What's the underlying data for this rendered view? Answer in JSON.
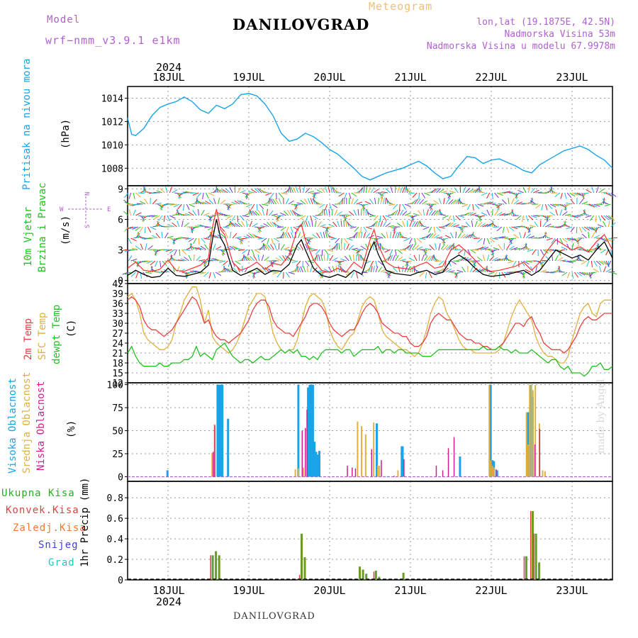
{
  "header": {
    "model_label": "Model",
    "model_name": "wrf−nmm_v3.9.1  e1km",
    "title": "DANILOVGRAD",
    "meteogram": "Meteogram",
    "lonlat": "lon,lat (19.1875E, 42.5N)",
    "altitude": "Nadmorska Visina 53m",
    "model_altitude": "Nadmorska Visina u modelu 67.9978m"
  },
  "footer": "DANILOVGRAD",
  "watermark": "made by Angel",
  "top_axis": {
    "year": "2024",
    "days": [
      "18JUL",
      "19JUL",
      "20JUL",
      "21JUL",
      "22JUL",
      "23JUL"
    ]
  },
  "bottom_axis": {
    "year": "2024",
    "days": [
      "18JUL",
      "19JUL",
      "20JUL",
      "21JUL",
      "22JUL",
      "23JUL"
    ]
  },
  "compass": {
    "n": "N",
    "s": "S",
    "w": "W",
    "e": "E"
  },
  "chart_data": [
    {
      "type": "line",
      "name": "pressure",
      "ylabel_colored": "Pritisak na nivou mora",
      "unit": "(hPa)",
      "color": "#1aa3e8",
      "ylim": [
        1006.5,
        1015
      ],
      "yticks": [
        "1008",
        "1010",
        "1012",
        "1014"
      ],
      "ytick_values": [
        1008,
        1010,
        1012,
        1014
      ],
      "x_days": [
        17.5,
        17.55,
        17.6,
        17.7,
        17.8,
        17.9,
        18.0,
        18.1,
        18.2,
        18.3,
        18.4,
        18.5,
        18.6,
        18.7,
        18.8,
        18.9,
        19.0,
        19.1,
        19.2,
        19.3,
        19.4,
        19.5,
        19.6,
        19.7,
        19.8,
        19.9,
        20.0,
        20.1,
        20.2,
        20.3,
        20.4,
        20.5,
        20.6,
        20.7,
        20.8,
        20.9,
        21.0,
        21.1,
        21.2,
        21.3,
        21.4,
        21.5,
        21.6,
        21.7,
        21.8,
        21.9,
        22.0,
        22.1,
        22.2,
        22.3,
        22.4,
        22.5,
        22.6,
        22.7,
        22.8,
        22.9,
        23.0,
        23.1,
        23.2,
        23.3,
        23.4,
        23.5
      ],
      "values": [
        1012.3,
        1010.9,
        1010.8,
        1011.4,
        1012.5,
        1013.2,
        1013.5,
        1013.7,
        1014.1,
        1013.7,
        1013.0,
        1012.7,
        1013.4,
        1013.1,
        1013.5,
        1014.3,
        1014.4,
        1014.2,
        1013.5,
        1012.5,
        1011.0,
        1010.3,
        1010.5,
        1011.0,
        1010.7,
        1010.2,
        1009.6,
        1009.2,
        1008.6,
        1008.0,
        1007.3,
        1007.0,
        1007.3,
        1007.6,
        1007.8,
        1008.0,
        1008.3,
        1008.6,
        1008.2,
        1007.6,
        1007.1,
        1007.3,
        1008.2,
        1009.0,
        1008.9,
        1008.4,
        1008.7,
        1008.8,
        1008.5,
        1008.2,
        1007.8,
        1007.6,
        1008.3,
        1008.7,
        1009.1,
        1009.5,
        1009.7,
        1009.9,
        1009.6,
        1009.1,
        1008.7,
        1008.0
      ]
    },
    {
      "type": "line",
      "name": "wind",
      "ylabel_colored_1": "10m Vjetar",
      "ylabel_colored_2": "Brzina i Pravac",
      "unit": "(m/s)",
      "ylim": [
        -0.3,
        9.3
      ],
      "yticks": [
        "0",
        "3",
        "6",
        "9"
      ],
      "ytick_values": [
        0,
        3,
        6,
        9
      ],
      "speed_color": "#000000",
      "gust_color": "#ff3030",
      "x_days": [
        17.5,
        17.6,
        17.7,
        17.8,
        17.9,
        18.0,
        18.1,
        18.2,
        18.3,
        18.4,
        18.5,
        18.55,
        18.6,
        18.65,
        18.7,
        18.8,
        18.9,
        19.0,
        19.1,
        19.2,
        19.3,
        19.4,
        19.5,
        19.6,
        19.65,
        19.7,
        19.8,
        19.9,
        20.0,
        20.1,
        20.2,
        20.3,
        20.4,
        20.5,
        20.55,
        20.6,
        20.7,
        20.8,
        20.9,
        21.0,
        21.1,
        21.2,
        21.3,
        21.4,
        21.5,
        21.6,
        21.7,
        21.8,
        21.9,
        22.0,
        22.1,
        22.2,
        22.3,
        22.4,
        22.5,
        22.6,
        22.7,
        22.8,
        22.9,
        23.0,
        23.1,
        23.2,
        23.3,
        23.4,
        23.5
      ],
      "speed": [
        0.5,
        1.0,
        0.6,
        0.3,
        0.4,
        1.2,
        0.5,
        0.4,
        0.6,
        0.8,
        1.5,
        4.0,
        6.0,
        4.2,
        3.5,
        1.0,
        0.5,
        0.8,
        1.2,
        0.6,
        1.0,
        0.9,
        1.6,
        3.5,
        4.0,
        3.0,
        1.2,
        0.5,
        0.3,
        0.6,
        0.3,
        1.0,
        0.6,
        3.0,
        3.8,
        2.6,
        1.0,
        0.7,
        0.6,
        0.5,
        0.8,
        1.0,
        0.6,
        0.8,
        2.0,
        2.5,
        2.0,
        1.2,
        0.6,
        0.4,
        0.5,
        0.6,
        0.8,
        1.0,
        0.5,
        1.0,
        2.0,
        3.0,
        2.6,
        2.2,
        2.5,
        2.0,
        3.0,
        3.8,
        2.2
      ],
      "gust": [
        1.2,
        1.8,
        1.0,
        0.9,
        1.1,
        2.0,
        1.0,
        0.9,
        1.2,
        1.5,
        2.2,
        5.2,
        7.0,
        5.0,
        4.5,
        1.8,
        1.0,
        1.3,
        1.8,
        1.1,
        1.7,
        1.5,
        2.5,
        5.0,
        5.5,
        4.0,
        2.0,
        1.0,
        0.8,
        1.2,
        0.8,
        1.8,
        1.2,
        4.0,
        5.0,
        3.5,
        1.8,
        1.3,
        1.2,
        1.1,
        1.5,
        1.8,
        1.2,
        1.4,
        3.0,
        3.5,
        2.8,
        2.0,
        1.2,
        0.9,
        1.0,
        1.2,
        1.4,
        1.8,
        1.0,
        1.8,
        3.0,
        4.0,
        3.5,
        3.0,
        3.3,
        2.8,
        3.8,
        4.5,
        3.0
      ]
    },
    {
      "type": "line",
      "name": "temperature",
      "ylabel_2m": "2m Temp",
      "ylabel_sfc": "SFC Temp",
      "ylabel_dew": "dewpt Temp",
      "unit": "(C)",
      "ylim": [
        12,
        42
      ],
      "yticks": [
        "12",
        "15",
        "18",
        "21",
        "24",
        "27",
        "30",
        "33",
        "36",
        "39",
        "42"
      ],
      "ytick_values": [
        12,
        15,
        18,
        21,
        24,
        27,
        30,
        33,
        36,
        39,
        42
      ],
      "colors": {
        "t2m": "#e84040",
        "sfc": "#e0b040",
        "dew": "#20c020"
      },
      "x_days": [
        17.5,
        17.55,
        17.6,
        17.65,
        17.7,
        17.75,
        17.8,
        17.85,
        17.9,
        17.95,
        18.0,
        18.05,
        18.1,
        18.15,
        18.2,
        18.25,
        18.3,
        18.35,
        18.4,
        18.45,
        18.5,
        18.55,
        18.6,
        18.65,
        18.7,
        18.75,
        18.8,
        18.85,
        18.9,
        18.95,
        19.0,
        19.05,
        19.1,
        19.15,
        19.2,
        19.25,
        19.3,
        19.35,
        19.4,
        19.45,
        19.5,
        19.55,
        19.6,
        19.65,
        19.7,
        19.75,
        19.8,
        19.85,
        19.9,
        19.95,
        20.0,
        20.05,
        20.1,
        20.15,
        20.2,
        20.25,
        20.3,
        20.35,
        20.4,
        20.45,
        20.5,
        20.55,
        20.6,
        20.65,
        20.7,
        20.75,
        20.8,
        20.85,
        20.9,
        20.95,
        21.0,
        21.05,
        21.1,
        21.15,
        21.2,
        21.25,
        21.3,
        21.35,
        21.4,
        21.45,
        21.5,
        21.55,
        21.6,
        21.65,
        21.7,
        21.75,
        21.8,
        21.85,
        21.9,
        21.95,
        22.0,
        22.05,
        22.1,
        22.15,
        22.2,
        22.25,
        22.3,
        22.35,
        22.4,
        22.45,
        22.5,
        22.55,
        22.6,
        22.65,
        22.7,
        22.75,
        22.8,
        22.85,
        22.9,
        22.95,
        23.0,
        23.05,
        23.1,
        23.15,
        23.2,
        23.25,
        23.3,
        23.35,
        23.4,
        23.45,
        23.5
      ],
      "t2m": [
        37,
        38,
        37,
        35,
        31,
        29,
        28,
        28,
        27,
        26,
        27,
        28,
        30,
        32,
        34,
        36,
        38,
        37,
        34,
        30,
        31,
        28,
        26,
        25,
        25,
        24,
        25,
        26,
        27,
        29,
        31,
        34,
        36,
        37,
        37,
        35,
        31,
        29,
        28,
        27,
        27,
        26,
        28,
        30,
        32,
        35,
        36,
        36,
        35,
        33,
        30,
        28,
        27,
        26,
        27,
        28,
        28,
        30,
        33,
        35,
        36,
        35,
        33,
        30,
        29,
        28,
        27,
        27,
        26,
        26,
        24,
        23,
        23,
        24,
        26,
        30,
        32,
        33,
        32,
        31,
        31,
        29,
        27,
        26,
        25,
        25,
        24,
        24,
        23,
        23,
        22,
        22,
        23,
        24,
        26,
        28,
        30,
        30,
        29,
        31,
        32,
        29,
        27,
        24,
        23,
        22,
        22,
        22,
        21,
        22,
        24,
        26,
        29,
        31,
        32,
        31,
        31,
        32,
        33,
        33,
        33
      ],
      "sfc": [
        38,
        39,
        37,
        33,
        27,
        25,
        24,
        23,
        22,
        22,
        23,
        25,
        30,
        33,
        37,
        39,
        41,
        41,
        37,
        30,
        34,
        26,
        24,
        23,
        22,
        21,
        22,
        24,
        27,
        31,
        35,
        37,
        39,
        39,
        38,
        33,
        27,
        24,
        22,
        21,
        22,
        22,
        25,
        30,
        35,
        38,
        39,
        38,
        37,
        34,
        28,
        25,
        23,
        22,
        24,
        26,
        27,
        31,
        35,
        37,
        38,
        37,
        33,
        28,
        26,
        25,
        24,
        23,
        22,
        22,
        21,
        20,
        21,
        24,
        28,
        33,
        36,
        38,
        37,
        33,
        31,
        28,
        25,
        23,
        22,
        22,
        21,
        21,
        21,
        21,
        21,
        21,
        22,
        24,
        28,
        32,
        35,
        37,
        35,
        33,
        31,
        26,
        23,
        21,
        20,
        20,
        19,
        18,
        18,
        20,
        25,
        29,
        33,
        35,
        36,
        33,
        32,
        36,
        37,
        37,
        37
      ],
      "dew": [
        21,
        23,
        20,
        18,
        17,
        17,
        17,
        17,
        18,
        17,
        17,
        18,
        18,
        18,
        19,
        19,
        20,
        23,
        20,
        21,
        20,
        19,
        22,
        23,
        24,
        22,
        20,
        19,
        18,
        19,
        19,
        18,
        19,
        20,
        19,
        19,
        20,
        21,
        22,
        21,
        22,
        21,
        22,
        20,
        20,
        19,
        20,
        19,
        21,
        22,
        22,
        22,
        22,
        21,
        22,
        22,
        20,
        21,
        22,
        22,
        22,
        22,
        23,
        21,
        22,
        22,
        21,
        22,
        22,
        21,
        21,
        21,
        21,
        20,
        20,
        20,
        21,
        22,
        22,
        22,
        22,
        22,
        22,
        22,
        22,
        22,
        22,
        22,
        23,
        22,
        22,
        22,
        23,
        22,
        22,
        21,
        22,
        21,
        21,
        21,
        22,
        21,
        20,
        19,
        18,
        19,
        19,
        17,
        16,
        17,
        15,
        15,
        15,
        14,
        15,
        17,
        17,
        18,
        16,
        16,
        17
      ]
    },
    {
      "type": "bar",
      "name": "cloudiness",
      "ylabel_high": "Visoka Oblacnost",
      "ylabel_mid": "Srednja Oblacnost",
      "ylabel_low": "Niska Oblacnost",
      "unit": "(%)",
      "ylim": [
        -5,
        102
      ],
      "yticks": [
        "0",
        "25",
        "50",
        "75",
        "100"
      ],
      "ytick_values": [
        0,
        25,
        50,
        75,
        100
      ],
      "colors": {
        "high": "#1aa3e8",
        "mid": "#e0b040",
        "low": "#d02090"
      },
      "high": [
        [
          17.98,
          7
        ],
        [
          18.6,
          100
        ],
        [
          18.62,
          100
        ],
        [
          18.64,
          100
        ],
        [
          18.66,
          100
        ],
        [
          18.73,
          63
        ],
        [
          19.6,
          100
        ],
        [
          19.72,
          97
        ],
        [
          19.74,
          100
        ],
        [
          19.76,
          100
        ],
        [
          19.78,
          100
        ],
        [
          19.8,
          38
        ],
        [
          19.82,
          27
        ],
        [
          19.84,
          24
        ],
        [
          19.86,
          28
        ],
        [
          20.57,
          58
        ],
        [
          20.7,
          0.5
        ],
        [
          20.88,
          33
        ],
        [
          20.89,
          33
        ],
        [
          21.6,
          22
        ],
        [
          21.98,
          100
        ],
        [
          22.0,
          18
        ],
        [
          22.02,
          17
        ],
        [
          22.06,
          7
        ],
        [
          22.44,
          70
        ],
        [
          22.45,
          70
        ],
        [
          22.48,
          100
        ],
        [
          22.5,
          87
        ]
      ],
      "mid": [
        [
          18.55,
          26
        ],
        [
          18.58,
          57
        ],
        [
          19.58,
          8
        ],
        [
          19.62,
          9
        ],
        [
          19.68,
          10
        ],
        [
          20.35,
          60
        ],
        [
          20.4,
          55
        ],
        [
          20.45,
          46
        ],
        [
          20.55,
          59
        ],
        [
          20.6,
          12
        ],
        [
          20.62,
          12
        ],
        [
          20.85,
          7
        ],
        [
          21.98,
          100
        ],
        [
          22.0,
          18
        ],
        [
          22.02,
          12
        ],
        [
          22.04,
          10
        ],
        [
          22.44,
          70
        ],
        [
          22.46,
          35
        ],
        [
          22.48,
          100
        ],
        [
          22.5,
          100
        ],
        [
          22.52,
          94
        ],
        [
          22.55,
          100
        ],
        [
          22.6,
          58
        ],
        [
          22.64,
          7
        ],
        [
          22.67,
          6
        ]
      ],
      "low": [
        [
          18.54,
          27
        ],
        [
          18.56,
          56
        ],
        [
          19.64,
          50
        ],
        [
          19.68,
          53
        ],
        [
          19.7,
          73
        ],
        [
          20.2,
          12
        ],
        [
          20.26,
          10
        ],
        [
          20.3,
          9
        ],
        [
          20.5,
          30
        ],
        [
          20.62,
          18
        ],
        [
          20.78,
          1
        ],
        [
          20.9,
          19
        ],
        [
          21.3,
          12
        ],
        [
          21.38,
          7
        ],
        [
          21.45,
          31
        ],
        [
          21.52,
          43
        ],
        [
          22.04,
          8
        ],
        [
          22.52,
          35
        ],
        [
          22.58,
          52
        ]
      ]
    },
    {
      "type": "bar",
      "name": "precipitation",
      "legend": [
        "Ukupna Kisa",
        "Konvek.Kisa",
        "Zaledj.Kisa",
        "Snijeg",
        "Grad"
      ],
      "legend_colors": [
        "#20b020",
        "#e04040",
        "#f07838",
        "#4040e0",
        "#20c8c0"
      ],
      "ylabel": "1hr Precip (mm)",
      "ylim": [
        0,
        0.96
      ],
      "yticks": [
        "0",
        "0.2",
        "0.4",
        "0.6",
        "0.8"
      ],
      "ytick_values": [
        0,
        0.2,
        0.4,
        0.6,
        0.8
      ],
      "total_color": "#6a9a28",
      "total": [
        [
          18.54,
          0.24
        ],
        [
          18.58,
          0.28
        ],
        [
          18.62,
          0.24
        ],
        [
          19.6,
          0.0
        ],
        [
          19.64,
          0.45
        ],
        [
          19.68,
          0.22
        ],
        [
          20.36,
          0.13
        ],
        [
          20.4,
          0.1
        ],
        [
          20.44,
          0.06
        ],
        [
          20.56,
          0.09
        ],
        [
          20.6,
          0.03
        ],
        [
          20.9,
          0.07
        ],
        [
          22.42,
          0.23
        ],
        [
          22.5,
          0.67
        ],
        [
          22.54,
          0.45
        ],
        [
          22.58,
          0.17
        ]
      ],
      "conv_color": "#e04040",
      "conv": [
        [
          18.53,
          0.24
        ],
        [
          19.63,
          0.05
        ],
        [
          20.55,
          0.08
        ],
        [
          22.41,
          0.23
        ],
        [
          22.49,
          0.67
        ],
        [
          22.53,
          0.45
        ]
      ]
    }
  ]
}
